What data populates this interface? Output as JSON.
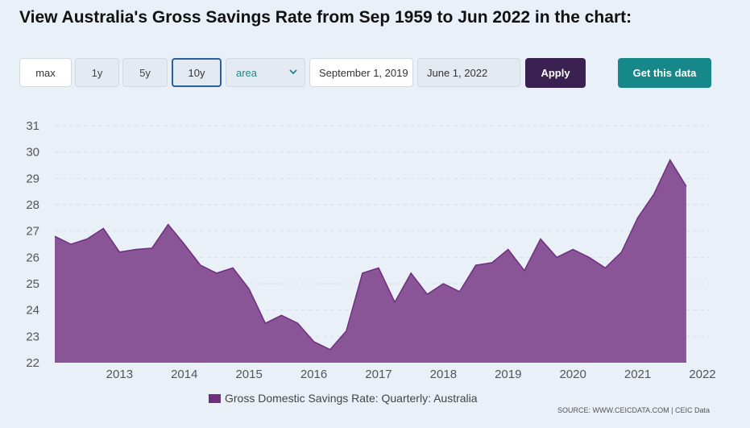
{
  "header": {
    "title": "View Australia's Gross Savings Rate from Sep 1959 to Jun 2022 in the chart:"
  },
  "controls": {
    "ranges": [
      "max",
      "1y",
      "5y",
      "10y"
    ],
    "selected_range": "10y",
    "chart_type_select": "area",
    "start_date": "September 1, 2019",
    "end_date": "June 1, 2022",
    "apply_label": "Apply",
    "get_data_label": "Get this data"
  },
  "colors": {
    "area_fill": "#8a5596",
    "area_line": "#6f2f80",
    "apply_bg": "#3a2151",
    "get_data_bg": "#17888a",
    "selected_border": "#2b5f9e"
  },
  "legend": {
    "label": "Gross Domestic Savings Rate: Quarterly: Australia"
  },
  "source": "SOURCE: WWW.CEICDATA.COM | CEIC Data",
  "chart_data": {
    "type": "area",
    "series": [
      {
        "name": "Gross Domestic Savings Rate: Quarterly: Australia",
        "x": [
          "2012-03",
          "2012-06",
          "2012-09",
          "2012-12",
          "2013-03",
          "2013-06",
          "2013-09",
          "2013-12",
          "2014-03",
          "2014-06",
          "2014-09",
          "2014-12",
          "2015-03",
          "2015-06",
          "2015-09",
          "2015-12",
          "2016-03",
          "2016-06",
          "2016-09",
          "2016-12",
          "2017-03",
          "2017-06",
          "2017-09",
          "2017-12",
          "2018-03",
          "2018-06",
          "2018-09",
          "2018-12",
          "2019-03",
          "2019-06",
          "2019-09",
          "2019-12",
          "2020-03",
          "2020-06",
          "2020-09",
          "2020-12",
          "2021-03",
          "2021-06",
          "2021-09",
          "2021-12",
          "2022-03",
          "2022-06"
        ],
        "values": [
          26.8,
          26.5,
          26.7,
          27.1,
          26.2,
          26.3,
          26.35,
          27.25,
          26.5,
          25.7,
          25.4,
          25.6,
          24.8,
          23.5,
          23.8,
          23.5,
          22.8,
          22.5,
          23.2,
          25.4,
          25.6,
          24.3,
          25.4,
          24.6,
          25.0,
          24.7,
          25.7,
          25.8,
          26.3,
          25.5,
          26.7,
          26.0,
          26.3,
          26.0,
          25.6,
          26.2,
          27.5,
          28.4,
          29.7,
          28.7,
          null,
          null
        ]
      }
    ],
    "x_tick_labels": [
      "2013",
      "2014",
      "2015",
      "2016",
      "2017",
      "2018",
      "2019",
      "2020",
      "2021",
      "2022"
    ],
    "y_ticks": [
      22,
      23,
      24,
      25,
      26,
      27,
      28,
      29,
      30,
      31
    ],
    "ylim": [
      22,
      31
    ],
    "grid": "horizontal-dashed",
    "legend_position": "bottom"
  }
}
